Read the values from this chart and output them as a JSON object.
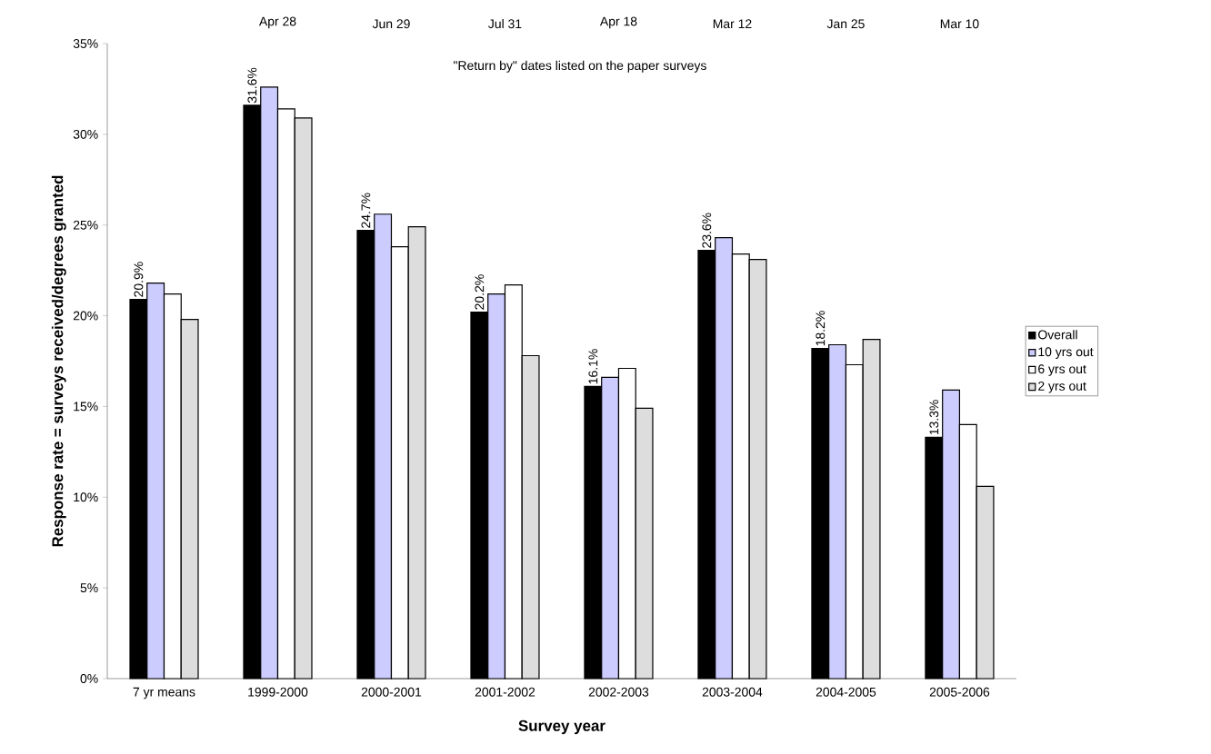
{
  "chart_data": {
    "type": "bar",
    "xlabel": "Survey year",
    "ylabel": "Response rate = surveys received/degrees granted",
    "categories": [
      "7 yr means",
      "1999-2000",
      "2000-2001",
      "2001-2002",
      "2002-2003",
      "2003-2004",
      "2004-2005",
      "2005-2006"
    ],
    "series": [
      {
        "name": "Overall",
        "color": "#000000",
        "values": [
          20.9,
          31.6,
          24.7,
          20.2,
          16.1,
          23.6,
          18.2,
          13.3
        ],
        "value_labels": [
          "20.9%",
          "31.6%",
          "24.7%",
          "20.2%",
          "16.1%",
          "23.6%",
          "18.2%",
          "13.3%"
        ]
      },
      {
        "name": "10 yrs out",
        "color": "#ccccff",
        "values": [
          21.8,
          32.6,
          25.6,
          21.2,
          16.6,
          24.3,
          18.4,
          15.9
        ]
      },
      {
        "name": "6 yrs out",
        "color": "#ffffff",
        "values": [
          21.2,
          31.4,
          23.8,
          21.7,
          17.1,
          23.4,
          17.3,
          14.0
        ]
      },
      {
        "name": "2 yrs out",
        "color": "#dddddd",
        "values": [
          19.8,
          30.9,
          24.9,
          17.8,
          14.9,
          23.1,
          18.7,
          10.6
        ]
      }
    ],
    "ylim": [
      0,
      35
    ],
    "yticks": [
      {
        "value": 0,
        "label": "0%"
      },
      {
        "value": 5,
        "label": "5%"
      },
      {
        "value": 10,
        "label": "10%"
      },
      {
        "value": 15,
        "label": "15%"
      },
      {
        "value": 20,
        "label": "20%"
      },
      {
        "value": 25,
        "label": "25%"
      },
      {
        "value": 30,
        "label": "30%"
      },
      {
        "value": 35,
        "label": "35%"
      }
    ],
    "annotations": [
      "\"Return by\" dates listed on the paper surveys",
      "Apr 28",
      "Jun 29",
      "Jul 31",
      "Apr 18",
      "Mar 12",
      "Jan 25",
      "Mar 10"
    ],
    "legend": "right",
    "grid": false
  }
}
